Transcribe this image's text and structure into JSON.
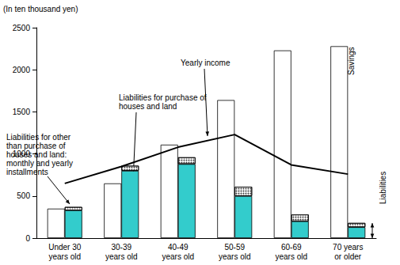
{
  "chart_data": {
    "type": "bar",
    "ylabel": "(In ten thousand yen)",
    "categories": [
      "Under 30\nyears old",
      "30-39\nyears old",
      "40-49\nyears old",
      "50-59\nyears old",
      "60-69\nyears old",
      "70 years\nor older"
    ],
    "series": [
      {
        "name": "Savings",
        "color": "#ffffff",
        "values": [
          350,
          650,
          1110,
          1640,
          2230,
          2280
        ]
      },
      {
        "name": "Liabilities for purchase of\nhouses and land",
        "color": "#33cccc",
        "stacked": true,
        "values": [
          330,
          800,
          880,
          500,
          200,
          130
        ]
      },
      {
        "name": "Liabilities for other\nthan purchase of\nhouses and land:\nmonthly and yearly\ninstallments",
        "color": "#ffffff",
        "stacked": true,
        "values": [
          40,
          60,
          80,
          110,
          80,
          50
        ]
      },
      {
        "name": "Yearly income",
        "type": "line",
        "color": "#000000",
        "values": [
          650,
          850,
          1080,
          1230,
          870,
          760
        ]
      }
    ],
    "annotations": [
      "Liabilities"
    ],
    "ylim": [
      0,
      2500
    ],
    "yticks": [
      0,
      500,
      1000,
      1500,
      2000,
      2500
    ],
    "grid": false
  }
}
